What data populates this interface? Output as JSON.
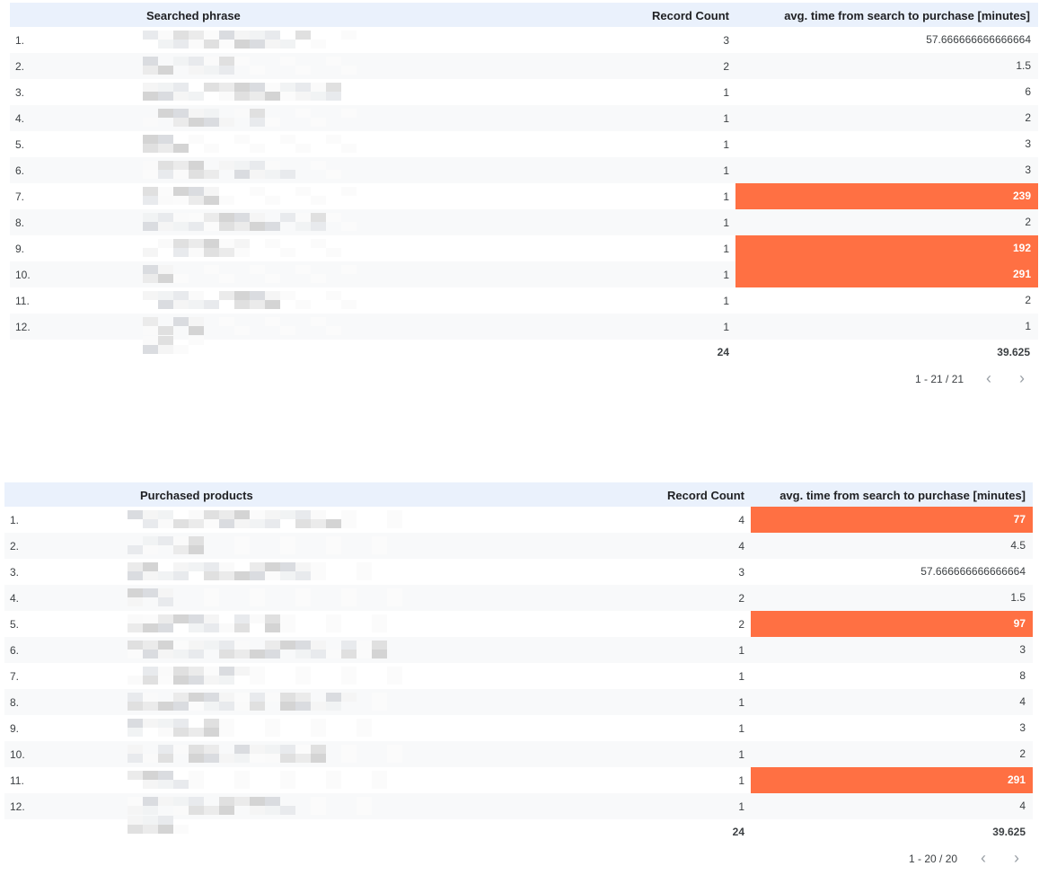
{
  "table1": {
    "headers": {
      "dimension": "Searched phrase",
      "count": "Record Count",
      "avg": "avg. time from search to purchase [minutes]"
    },
    "rows": [
      {
        "num": "1.",
        "count": "3",
        "avg": "57.666666666666664",
        "highlight": false
      },
      {
        "num": "2.",
        "count": "2",
        "avg": "1.5",
        "highlight": false
      },
      {
        "num": "3.",
        "count": "1",
        "avg": "6",
        "highlight": false
      },
      {
        "num": "4.",
        "count": "1",
        "avg": "2",
        "highlight": false
      },
      {
        "num": "5.",
        "count": "1",
        "avg": "3",
        "highlight": false
      },
      {
        "num": "6.",
        "count": "1",
        "avg": "3",
        "highlight": false
      },
      {
        "num": "7.",
        "count": "1",
        "avg": "239",
        "highlight": true
      },
      {
        "num": "8.",
        "count": "1",
        "avg": "2",
        "highlight": false
      },
      {
        "num": "9.",
        "count": "1",
        "avg": "192",
        "highlight": true
      },
      {
        "num": "10.",
        "count": "1",
        "avg": "291",
        "highlight": true
      },
      {
        "num": "11.",
        "count": "1",
        "avg": "2",
        "highlight": false
      },
      {
        "num": "12.",
        "count": "1",
        "avg": "1",
        "highlight": false
      }
    ],
    "totals": {
      "count": "24",
      "avg": "39.625"
    },
    "pager": {
      "label": "1 - 21 / 21"
    }
  },
  "table2": {
    "headers": {
      "dimension": "Purchased products",
      "count": "Record Count",
      "avg": "avg. time from search to purchase [minutes]"
    },
    "rows": [
      {
        "num": "1.",
        "count": "4",
        "avg": "77",
        "highlight": true
      },
      {
        "num": "2.",
        "count": "4",
        "avg": "4.5",
        "highlight": false
      },
      {
        "num": "3.",
        "count": "3",
        "avg": "57.666666666666664",
        "highlight": false
      },
      {
        "num": "4.",
        "count": "2",
        "avg": "1.5",
        "highlight": false
      },
      {
        "num": "5.",
        "count": "2",
        "avg": "97",
        "highlight": true
      },
      {
        "num": "6.",
        "count": "1",
        "avg": "3",
        "highlight": false
      },
      {
        "num": "7.",
        "count": "1",
        "avg": "8",
        "highlight": false
      },
      {
        "num": "8.",
        "count": "1",
        "avg": "4",
        "highlight": false
      },
      {
        "num": "9.",
        "count": "1",
        "avg": "3",
        "highlight": false
      },
      {
        "num": "10.",
        "count": "1",
        "avg": "2",
        "highlight": false
      },
      {
        "num": "11.",
        "count": "1",
        "avg": "291",
        "highlight": true
      },
      {
        "num": "12.",
        "count": "1",
        "avg": "4",
        "highlight": false
      }
    ],
    "totals": {
      "count": "24",
      "avg": "39.625"
    },
    "pager": {
      "label": "1 - 20 / 20"
    }
  },
  "icons": {
    "prev": "chevron-left-icon",
    "next": "chevron-right-icon"
  },
  "colors": {
    "header_bg": "#eaf1fc",
    "highlight": "#ff7043"
  }
}
